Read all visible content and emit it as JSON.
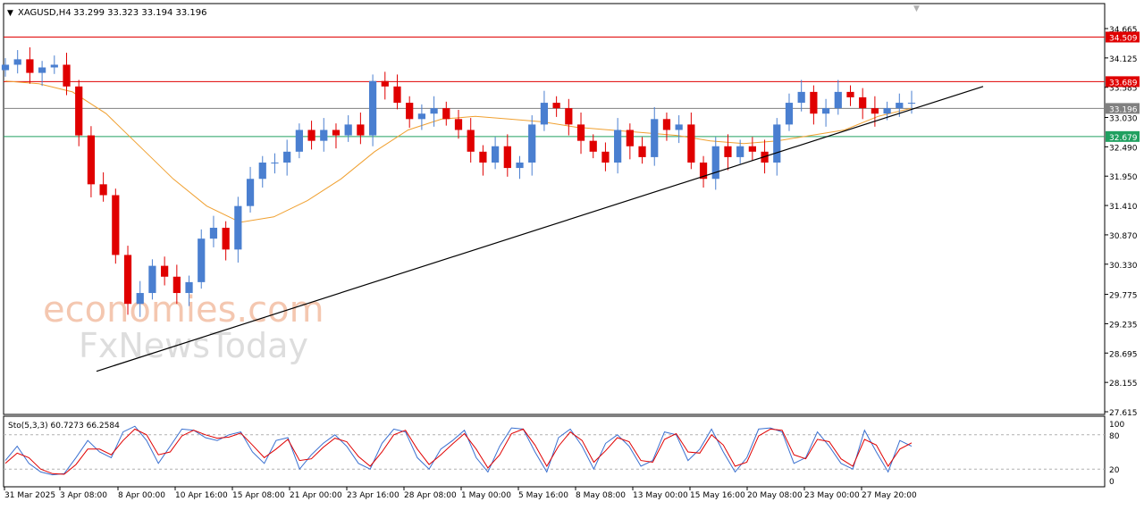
{
  "header": {
    "symbol": "XAGUSD,H4",
    "ohlc": "33.299 33.323 33.194 33.196"
  },
  "watermark": {
    "line1": "economies.com",
    "line2": "FxNewsToday"
  },
  "chart_data": [
    {
      "type": "candlestick",
      "title": "XAGUSD,H4",
      "ylim": [
        27.615,
        34.665
      ],
      "yticks": [
        "34.665",
        "34.125",
        "33.585",
        "33.030",
        "32.490",
        "31.950",
        "31.410",
        "30.870",
        "30.330",
        "29.775",
        "29.235",
        "28.695",
        "28.155",
        "27.615"
      ],
      "xticks": [
        "31 Mar 2025",
        "3 Apr 08:00",
        "8 Apr 00:00",
        "10 Apr 16:00",
        "15 Apr 08:00",
        "21 Apr 00:00",
        "23 Apr 16:00",
        "28 Apr 08:00",
        "1 May 00:00",
        "5 May 16:00",
        "8 May 08:00",
        "13 May 00:00",
        "15 May 16:00",
        "20 May 08:00",
        "23 May 00:00",
        "27 May 20:00"
      ],
      "horizontal_levels": [
        {
          "label": "34.509",
          "value": 34.509,
          "color": "#e00000"
        },
        {
          "label": "33.689",
          "value": 33.689,
          "color": "#e00000"
        },
        {
          "label": "33.196",
          "value": 33.196,
          "color": "#808080"
        },
        {
          "label": "32.679",
          "value": 32.679,
          "color": "#20a060"
        }
      ],
      "trendline": {
        "from": {
          "x": "2 Apr 2025",
          "y": 28.36
        },
        "to": {
          "x": "28 May 2025",
          "y": 33.45
        }
      },
      "moving_average_color": "#f0a030",
      "bull_color": "#4a7fd0",
      "bear_color": "#e00000",
      "series": [
        {
          "name": "XAGUSD close (approx.)",
          "values": [
            34.0,
            34.1,
            33.85,
            33.95,
            34.0,
            33.6,
            32.7,
            31.8,
            31.6,
            30.5,
            29.6,
            29.8,
            30.3,
            30.1,
            29.8,
            30.0,
            30.8,
            31.0,
            30.6,
            31.4,
            31.9,
            32.2,
            32.2,
            32.4,
            32.8,
            32.6,
            32.8,
            32.7,
            32.9,
            32.7,
            33.7,
            33.6,
            33.3,
            33.0,
            33.1,
            33.2,
            33.0,
            32.8,
            32.4,
            32.2,
            32.5,
            32.1,
            32.2,
            32.9,
            33.3,
            33.2,
            32.9,
            32.6,
            32.4,
            32.2,
            32.8,
            32.5,
            32.3,
            33.0,
            32.8,
            32.9,
            32.2,
            31.9,
            32.5,
            32.3,
            32.5,
            32.4,
            32.2,
            32.9,
            33.3,
            33.5,
            33.1,
            33.2,
            33.5,
            33.4,
            33.2,
            33.1,
            33.2,
            33.3,
            33.3
          ]
        },
        {
          "name": "Moving average (approx.)",
          "values": [
            33.7,
            33.65,
            33.5,
            33.1,
            32.5,
            31.9,
            31.4,
            31.1,
            31.2,
            31.5,
            31.9,
            32.4,
            32.8,
            33.0,
            33.05,
            33.0,
            32.95,
            32.85,
            32.8,
            32.75,
            32.7,
            32.6,
            32.55,
            32.6,
            32.7,
            32.8,
            33.05,
            33.2
          ]
        }
      ]
    },
    {
      "type": "line",
      "title": "Sto(5,3,3) 60.7273 66.2584",
      "ylim": [
        0,
        100
      ],
      "yticks": [
        "100",
        "80",
        "20",
        "0"
      ],
      "series": [
        {
          "name": "main",
          "color": "#3a70d0",
          "values": [
            35,
            60,
            30,
            15,
            10,
            12,
            40,
            70,
            50,
            40,
            85,
            95,
            70,
            30,
            60,
            90,
            88,
            75,
            70,
            80,
            85,
            50,
            30,
            70,
            75,
            20,
            45,
            65,
            80,
            60,
            30,
            20,
            65,
            90,
            85,
            40,
            20,
            55,
            70,
            88,
            40,
            15,
            60,
            92,
            90,
            50,
            15,
            75,
            90,
            60,
            20,
            65,
            80,
            60,
            25,
            35,
            85,
            80,
            35,
            55,
            90,
            50,
            15,
            40,
            90,
            92,
            85,
            30,
            40,
            85,
            60,
            30,
            20,
            88,
            50,
            15,
            70,
            60
          ]
        },
        {
          "name": "signal",
          "color": "#e00000",
          "values": [
            30,
            48,
            40,
            20,
            12,
            11,
            28,
            55,
            55,
            45,
            70,
            90,
            80,
            45,
            50,
            78,
            88,
            80,
            74,
            76,
            83,
            62,
            40,
            55,
            72,
            35,
            38,
            58,
            74,
            68,
            42,
            25,
            50,
            80,
            88,
            55,
            28,
            45,
            64,
            82,
            55,
            22,
            45,
            82,
            90,
            62,
            25,
            60,
            85,
            70,
            32,
            52,
            75,
            68,
            35,
            32,
            72,
            82,
            50,
            48,
            80,
            62,
            25,
            32,
            78,
            90,
            88,
            45,
            38,
            72,
            68,
            38,
            25,
            72,
            62,
            25,
            55,
            66
          ]
        }
      ]
    }
  ]
}
